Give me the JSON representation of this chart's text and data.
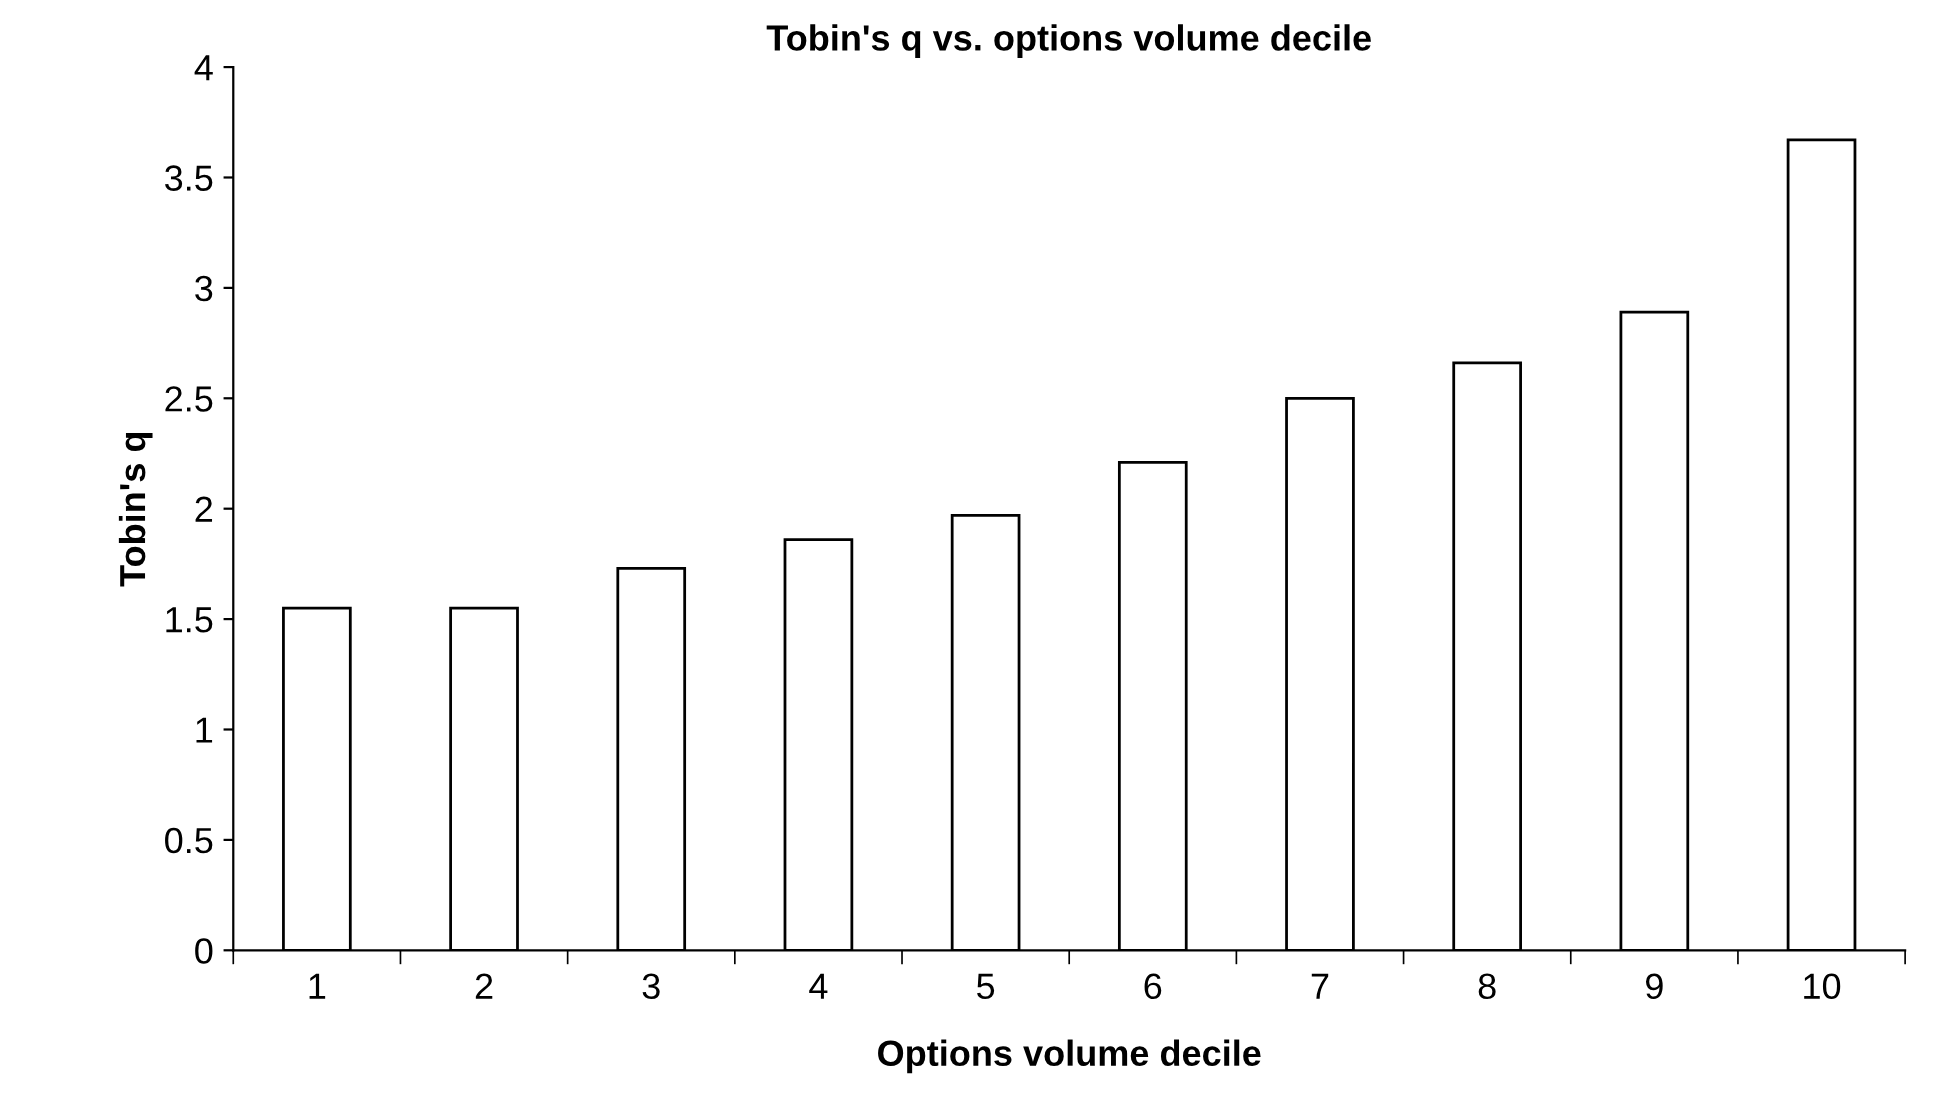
{
  "chart_data": {
    "type": "bar",
    "title": "Tobin's q vs. options volume decile",
    "xlabel": "Options volume decile",
    "ylabel": "Tobin's q",
    "categories": [
      "1",
      "2",
      "3",
      "4",
      "5",
      "6",
      "7",
      "8",
      "9",
      "10"
    ],
    "series": [
      {
        "color": "#ffffff",
        "values": [
          1.55,
          1.55,
          1.73,
          1.86,
          1.97,
          2.21,
          2.5,
          2.66,
          2.89,
          3.67
        ]
      }
    ],
    "ylim": [
      0,
      4
    ],
    "yticks": [
      0,
      0.5,
      1,
      1.5,
      2,
      2.5,
      3,
      3.5,
      4
    ],
    "grid": false
  }
}
